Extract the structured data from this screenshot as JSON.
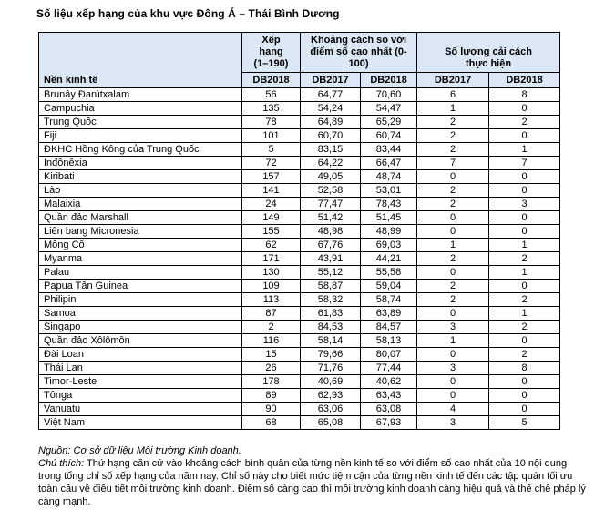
{
  "title": "Số liệu xếp hạng của khu vực Đông Á – Thái Bình Dương",
  "colors": {
    "header_bg": "#dbe7f4",
    "border": "#000000",
    "text": "#000000"
  },
  "table": {
    "header": {
      "economy": "Nền kinh tế",
      "rank_group": "Xếp\nhạng\n(1–190)",
      "dtf_group": "Khoảng cách so với\nđiểm số cao nhất (0-\n100)",
      "reforms_group": "Số lượng cải cách\nthực hiện",
      "sub": [
        "DB2018",
        "DB2017",
        "DB2018",
        "DB2017",
        "DB2018"
      ]
    },
    "rows": [
      {
        "economy": "Brunây Đarútxalam",
        "rank_db2018": "56",
        "dtf_db2017": "64,77",
        "dtf_db2018": "70,60",
        "reforms_db2017": "6",
        "reforms_db2018": "8"
      },
      {
        "economy": "Campuchia",
        "rank_db2018": "135",
        "dtf_db2017": "54,24",
        "dtf_db2018": "54,47",
        "reforms_db2017": "1",
        "reforms_db2018": "0"
      },
      {
        "economy": "Trung Quốc",
        "rank_db2018": "78",
        "dtf_db2017": "64,89",
        "dtf_db2018": "65,29",
        "reforms_db2017": "2",
        "reforms_db2018": "2"
      },
      {
        "economy": "Fiji",
        "rank_db2018": "101",
        "dtf_db2017": "60,70",
        "dtf_db2018": "60,74",
        "reforms_db2017": "2",
        "reforms_db2018": "0"
      },
      {
        "economy": "ĐKHC Hồng Kông của Trung Quốc",
        "rank_db2018": "5",
        "dtf_db2017": "83,15",
        "dtf_db2018": "83,44",
        "reforms_db2017": "2",
        "reforms_db2018": "1"
      },
      {
        "economy": "Inđônêxia",
        "rank_db2018": "72",
        "dtf_db2017": "64,22",
        "dtf_db2018": "66,47",
        "reforms_db2017": "7",
        "reforms_db2018": "7"
      },
      {
        "economy": "Kiribati",
        "rank_db2018": "157",
        "dtf_db2017": "49,05",
        "dtf_db2018": "48,74",
        "reforms_db2017": "0",
        "reforms_db2018": "0"
      },
      {
        "economy": "Lào",
        "rank_db2018": "141",
        "dtf_db2017": "52,58",
        "dtf_db2018": "53,01",
        "reforms_db2017": "2",
        "reforms_db2018": "0"
      },
      {
        "economy": "Malaixia",
        "rank_db2018": "24",
        "dtf_db2017": "77,47",
        "dtf_db2018": "78,43",
        "reforms_db2017": "2",
        "reforms_db2018": "3"
      },
      {
        "economy": "Quần đảo Marshall",
        "rank_db2018": "149",
        "dtf_db2017": "51,42",
        "dtf_db2018": "51,45",
        "reforms_db2017": "0",
        "reforms_db2018": "0"
      },
      {
        "economy": "Liên bang Micronesia",
        "rank_db2018": "155",
        "dtf_db2017": "48,98",
        "dtf_db2018": "48,99",
        "reforms_db2017": "0",
        "reforms_db2018": "0"
      },
      {
        "economy": "Mông Cổ",
        "rank_db2018": "62",
        "dtf_db2017": "67,76",
        "dtf_db2018": "69,03",
        "reforms_db2017": "1",
        "reforms_db2018": "1"
      },
      {
        "economy": "Myanma",
        "rank_db2018": "171",
        "dtf_db2017": "43,91",
        "dtf_db2018": "44,21",
        "reforms_db2017": "2",
        "reforms_db2018": "2"
      },
      {
        "economy": "Palau",
        "rank_db2018": "130",
        "dtf_db2017": "55,12",
        "dtf_db2018": "55,58",
        "reforms_db2017": "0",
        "reforms_db2018": "1"
      },
      {
        "economy": "Papua Tân Guinea",
        "rank_db2018": "109",
        "dtf_db2017": "58,87",
        "dtf_db2018": "59,04",
        "reforms_db2017": "2",
        "reforms_db2018": "0"
      },
      {
        "economy": "Philipin",
        "rank_db2018": "113",
        "dtf_db2017": "58,32",
        "dtf_db2018": "58,74",
        "reforms_db2017": "2",
        "reforms_db2018": "2"
      },
      {
        "economy": "Samoa",
        "rank_db2018": "87",
        "dtf_db2017": "61,83",
        "dtf_db2018": "63,89",
        "reforms_db2017": "0",
        "reforms_db2018": "1"
      },
      {
        "economy": "Singapo",
        "rank_db2018": "2",
        "dtf_db2017": "84,53",
        "dtf_db2018": "84,57",
        "reforms_db2017": "3",
        "reforms_db2018": "2"
      },
      {
        "economy": "Quần đảo Xôlômôn",
        "rank_db2018": "116",
        "dtf_db2017": "58,14",
        "dtf_db2018": "58,13",
        "reforms_db2017": "1",
        "reforms_db2018": "0"
      },
      {
        "economy": "Đài Loan",
        "rank_db2018": "15",
        "dtf_db2017": "79,66",
        "dtf_db2018": "80,07",
        "reforms_db2017": "0",
        "reforms_db2018": "2"
      },
      {
        "economy": "Thái Lan",
        "rank_db2018": "26",
        "dtf_db2017": "71,76",
        "dtf_db2018": "77,44",
        "reforms_db2017": "3",
        "reforms_db2018": "8"
      },
      {
        "economy": "Timor-Leste",
        "rank_db2018": "178",
        "dtf_db2017": "40,69",
        "dtf_db2018": "40,62",
        "reforms_db2017": "0",
        "reforms_db2018": "0"
      },
      {
        "economy": "Tônga",
        "rank_db2018": "89",
        "dtf_db2017": "62,93",
        "dtf_db2018": "63,43",
        "reforms_db2017": "0",
        "reforms_db2018": "0"
      },
      {
        "economy": "Vanuatu",
        "rank_db2018": "90",
        "dtf_db2017": "63,06",
        "dtf_db2018": "63,08",
        "reforms_db2017": "4",
        "reforms_db2018": "0"
      },
      {
        "economy": "Việt Nam",
        "rank_db2018": "68",
        "dtf_db2017": "65,08",
        "dtf_db2018": "67,93",
        "reforms_db2017": "3",
        "reforms_db2018": "5"
      }
    ]
  },
  "footer": {
    "source_label": "Nguồn:",
    "source_text": " Cơ sở dữ liệu Môi trường Kinh doanh.",
    "note_label": "Chú thích:",
    "note_text": " Thứ hạng căn cứ vào khoảng cách bình quân của từng nền kinh tế so với điểm số cao nhất của 10 nội dung trong tổng chỉ số xếp hạng của năm nay. Chỉ số này cho biết mức tiệm cận của từng nền kinh tế đến các tập quán tối ưu toàn cầu về điều tiết môi trường kinh doanh. Điểm số càng cao thì môi trường kinh doanh càng hiệu quả và thể chế pháp lý càng mạnh."
  }
}
